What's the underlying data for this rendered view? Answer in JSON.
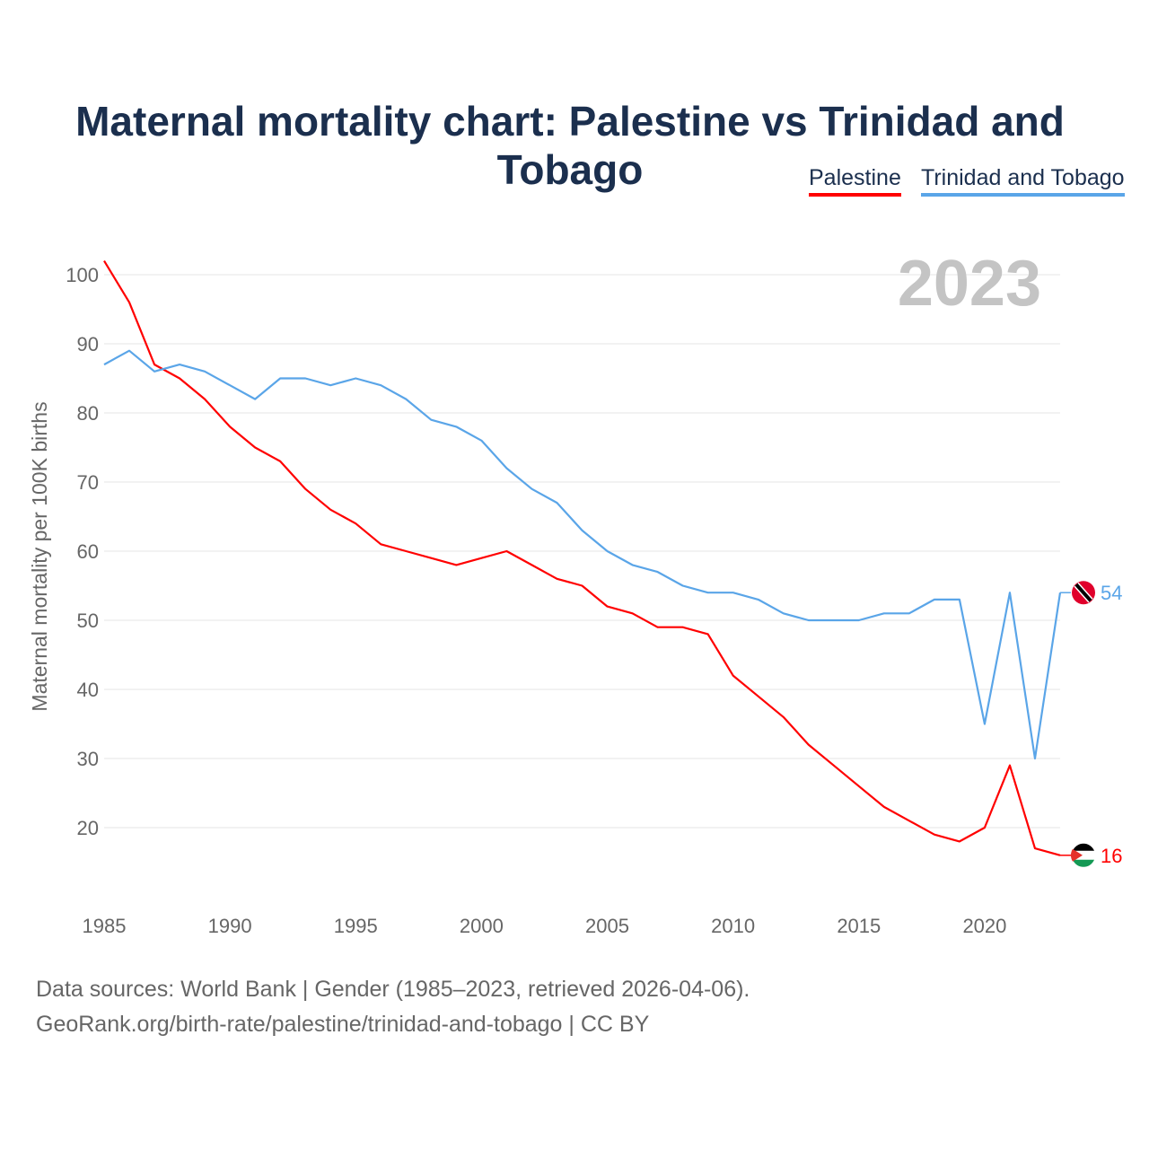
{
  "chart_data": {
    "type": "line",
    "title": "Maternal mortality chart: Palestine vs Trinidad and Tobago",
    "ylabel": "Maternal mortality per 100K births",
    "xlabel": "",
    "year_label": "2023",
    "ylim": [
      10,
      102
    ],
    "yticks": [
      20,
      30,
      40,
      50,
      60,
      70,
      80,
      90,
      100
    ],
    "xticks": [
      1985,
      1990,
      1995,
      2000,
      2005,
      2010,
      2015,
      2020
    ],
    "x": [
      1985,
      1986,
      1987,
      1988,
      1989,
      1990,
      1991,
      1992,
      1993,
      1994,
      1995,
      1996,
      1997,
      1998,
      1999,
      2000,
      2001,
      2002,
      2003,
      2004,
      2005,
      2006,
      2007,
      2008,
      2009,
      2010,
      2011,
      2012,
      2013,
      2014,
      2015,
      2016,
      2017,
      2018,
      2019,
      2020,
      2021,
      2022,
      2023
    ],
    "series": [
      {
        "name": "Palestine",
        "color": "#ff0000",
        "end_label": "16",
        "values": [
          102,
          96,
          87,
          85,
          82,
          78,
          75,
          73,
          69,
          66,
          64,
          61,
          60,
          59,
          58,
          59,
          60,
          58,
          56,
          55,
          52,
          51,
          49,
          49,
          48,
          42,
          39,
          36,
          32,
          29,
          26,
          23,
          21,
          19,
          18,
          20,
          29,
          17,
          16
        ]
      },
      {
        "name": "Trinidad and Tobago",
        "color": "#5aa5e8",
        "end_label": "54",
        "values": [
          87,
          89,
          86,
          87,
          86,
          84,
          82,
          85,
          85,
          84,
          85,
          84,
          82,
          79,
          78,
          76,
          72,
          69,
          67,
          63,
          60,
          58,
          57,
          55,
          54,
          54,
          53,
          51,
          50,
          50,
          50,
          51,
          51,
          53,
          53,
          35,
          54,
          30,
          54
        ]
      }
    ],
    "legend_position": "top-right",
    "grid": true
  },
  "footer": {
    "line1": "Data sources: World Bank | Gender (1985–2023, retrieved 2026-04-06).",
    "line2": "GeoRank.org/birth-rate/palestine/trinidad-and-tobago | CC BY"
  }
}
